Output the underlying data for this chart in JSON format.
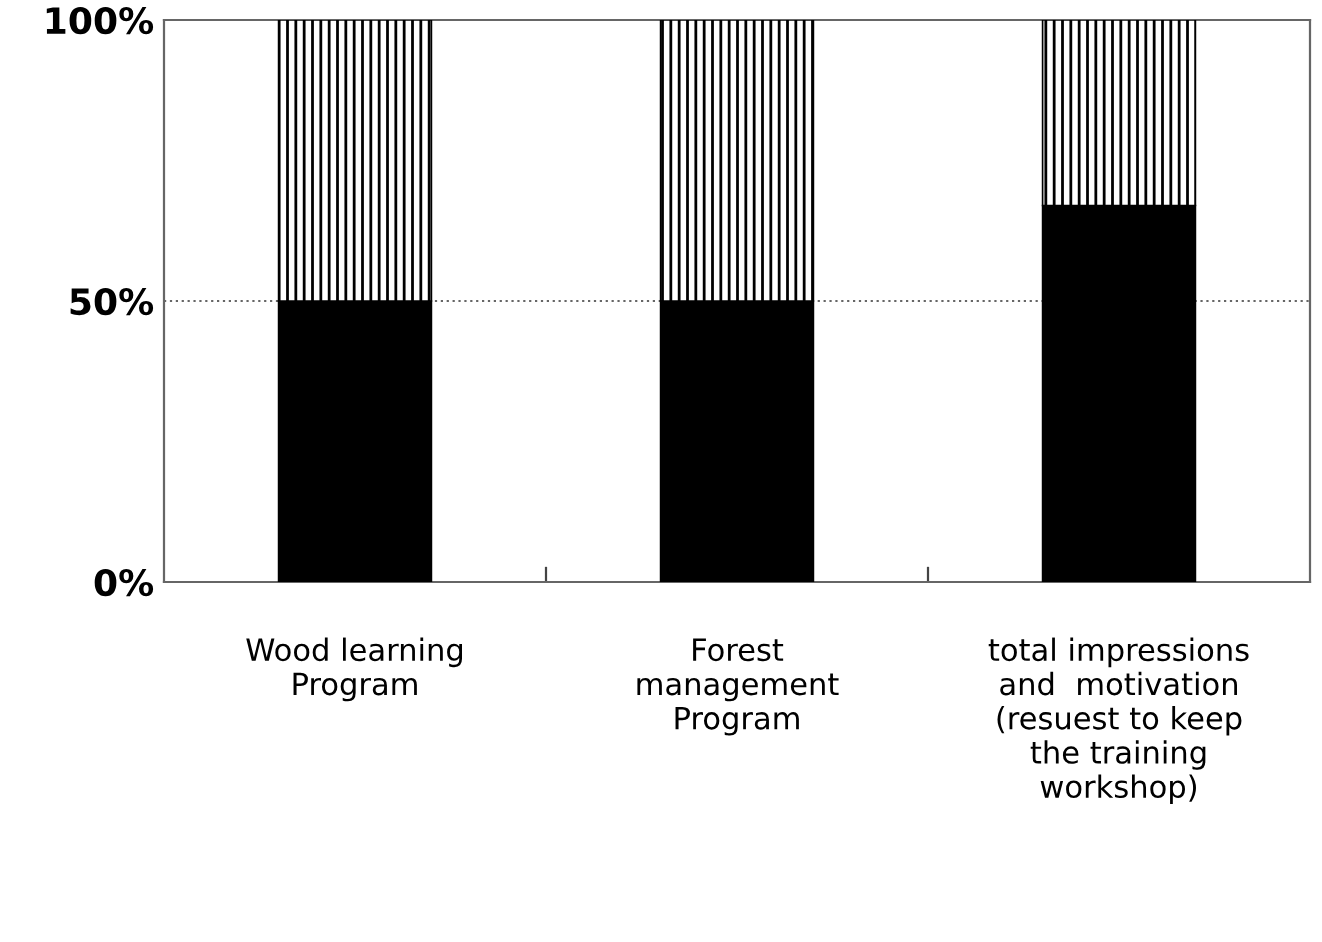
{
  "chart_data": {
    "type": "bar",
    "stacked": true,
    "categories": [
      "Wood learning\nProgram",
      "Forest\nmanagement\nProgram",
      "total impressions\nand  motivation\n(resuest to keep\nthe training\nworkshop)"
    ],
    "series": [
      {
        "color": "#000000",
        "values": [
          50,
          50,
          67
        ]
      },
      {
        "color": "#000000",
        "values": [
          50,
          50,
          33
        ]
      }
    ],
    "ylim": [
      0,
      100
    ],
    "yticks": [
      {
        "value": 0,
        "label": "0%"
      },
      {
        "value": 50,
        "label": "50%"
      },
      {
        "value": 100,
        "label": "100%"
      }
    ],
    "grid": "y",
    "line_style": "dotted"
  }
}
